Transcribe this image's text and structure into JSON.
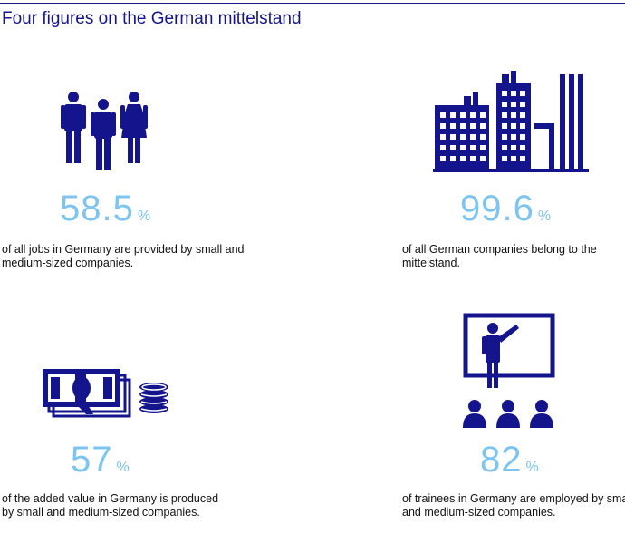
{
  "title": "Four figures on the German mittelstand",
  "colors": {
    "navy": "#14148c",
    "light_blue": "#7cc4f2",
    "text": "#111111"
  },
  "figures": [
    {
      "icon": "people-icon",
      "value": "58.5",
      "unit": "%",
      "description": "of all jobs in Germany are provided by small and medium-sized companies."
    },
    {
      "icon": "buildings-icon",
      "value": "99.6",
      "unit": "%",
      "description": "of all German companies belong to the mittelstand."
    },
    {
      "icon": "money-icon",
      "value": "57",
      "unit": "%",
      "description": "of the added value in Germany is produced by small and medium-sized companies."
    },
    {
      "icon": "trainer-icon",
      "value": "82",
      "unit": "%",
      "description": "of trainees in Germany are employed by small and medium-sized companies."
    }
  ]
}
